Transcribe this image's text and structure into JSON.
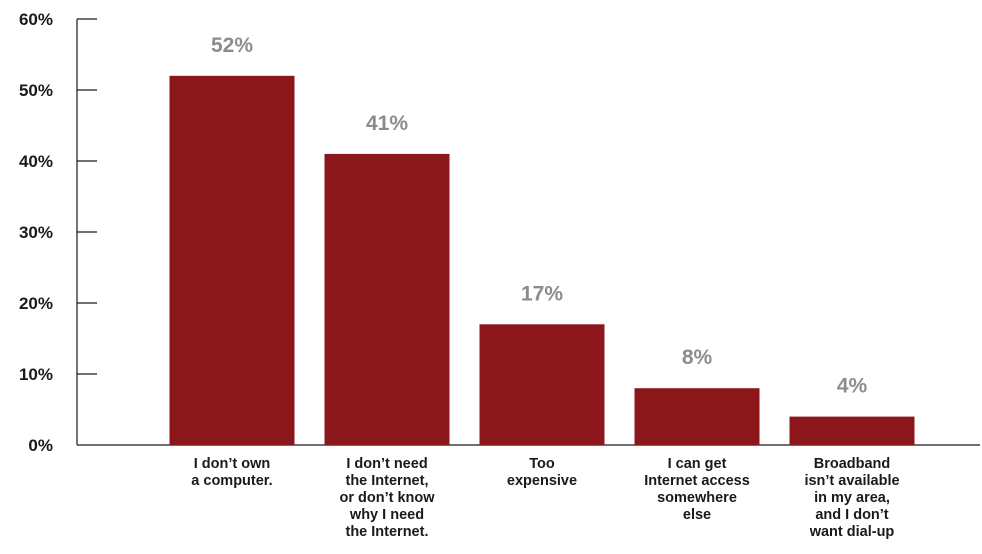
{
  "chart_data": {
    "type": "bar",
    "title": "",
    "xlabel": "",
    "ylabel": "",
    "categories": [
      [
        "I don’t own",
        "a computer."
      ],
      [
        "I don’t need",
        "the Internet,",
        "or don’t know",
        "why I need",
        "the Internet."
      ],
      [
        "Too",
        "expensive"
      ],
      [
        "I can get",
        "Internet access",
        "somewhere",
        "else"
      ],
      [
        "Broadband",
        "isn’t available",
        "in my area,",
        "and I don’t",
        "want dial-up"
      ]
    ],
    "values": [
      52,
      41,
      17,
      8,
      4
    ],
    "data_labels": [
      "52%",
      "41%",
      "17%",
      "8%",
      "4%"
    ],
    "ylim": [
      0,
      60
    ],
    "y_ticks": [
      0,
      10,
      20,
      30,
      40,
      50,
      60
    ],
    "y_tick_labels": [
      "0%",
      "10%",
      "20%",
      "30%",
      "40%",
      "50%",
      "60%"
    ],
    "grid": false,
    "legend": "none",
    "colors": {
      "bar": "#8b171b",
      "data_label": "#8c8c8c",
      "text": "#1a1a1a",
      "axis": "#1a1a1a"
    }
  }
}
